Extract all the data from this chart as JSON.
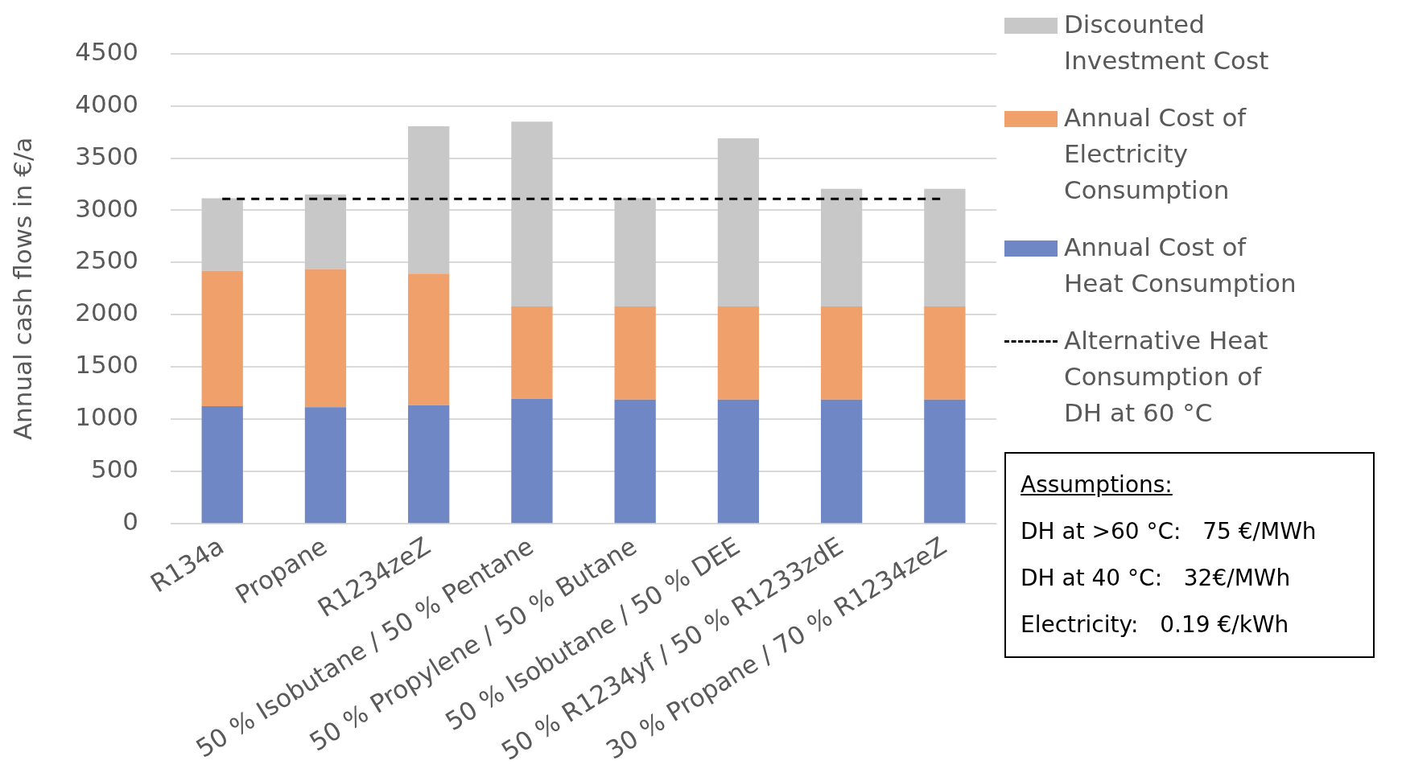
{
  "chart_data": {
    "type": "bar",
    "stacked": true,
    "ylabel": "Annual cash flows in €/a",
    "categories": [
      "R134a",
      "Propane",
      "R1234zeZ",
      "50 % Isobutane / 50 % Pentane",
      "50 % Propylene / 50 % Butane",
      "50 % Isobutane / 50 % DEE",
      "50 % R1234yf / 50 % R1233zdE",
      "30 % Propane / 70 % R1234zeZ"
    ],
    "series": [
      {
        "name": "Annual Cost of Heat Consumption",
        "color": "#6f87c4",
        "values": [
          1125,
          1116,
          1134,
          1196,
          1188,
          1188,
          1188,
          1188
        ]
      },
      {
        "name": "Annual Cost of Electricity Consumption",
        "color": "#f0a06a",
        "values": [
          1295,
          1321,
          1259,
          884,
          892,
          892,
          892,
          892
        ]
      },
      {
        "name": "Discounted Investment Cost",
        "color": "#c8c8c8",
        "values": [
          695,
          715,
          1411,
          1768,
          1036,
          1608,
          1125,
          1125
        ]
      }
    ],
    "ylim": [
      0,
      4500
    ],
    "yticks": [
      0,
      500,
      1000,
      1500,
      2000,
      2500,
      3000,
      3500,
      4000,
      4500
    ],
    "grid": "y",
    "legend": "right",
    "ref_lines": [
      {
        "axis": "y",
        "value": 3110,
        "label": "Alternative Heat Consumption of DH at 60 °C",
        "color": "#000000",
        "line_style": "dashed"
      }
    ],
    "annotations": [
      "Assumptions:",
      "DH at >60 °C:   75 €/MWh",
      "DH at 40 °C:   32€/MWh",
      "Electricity:   0.19 €/kWh"
    ]
  }
}
